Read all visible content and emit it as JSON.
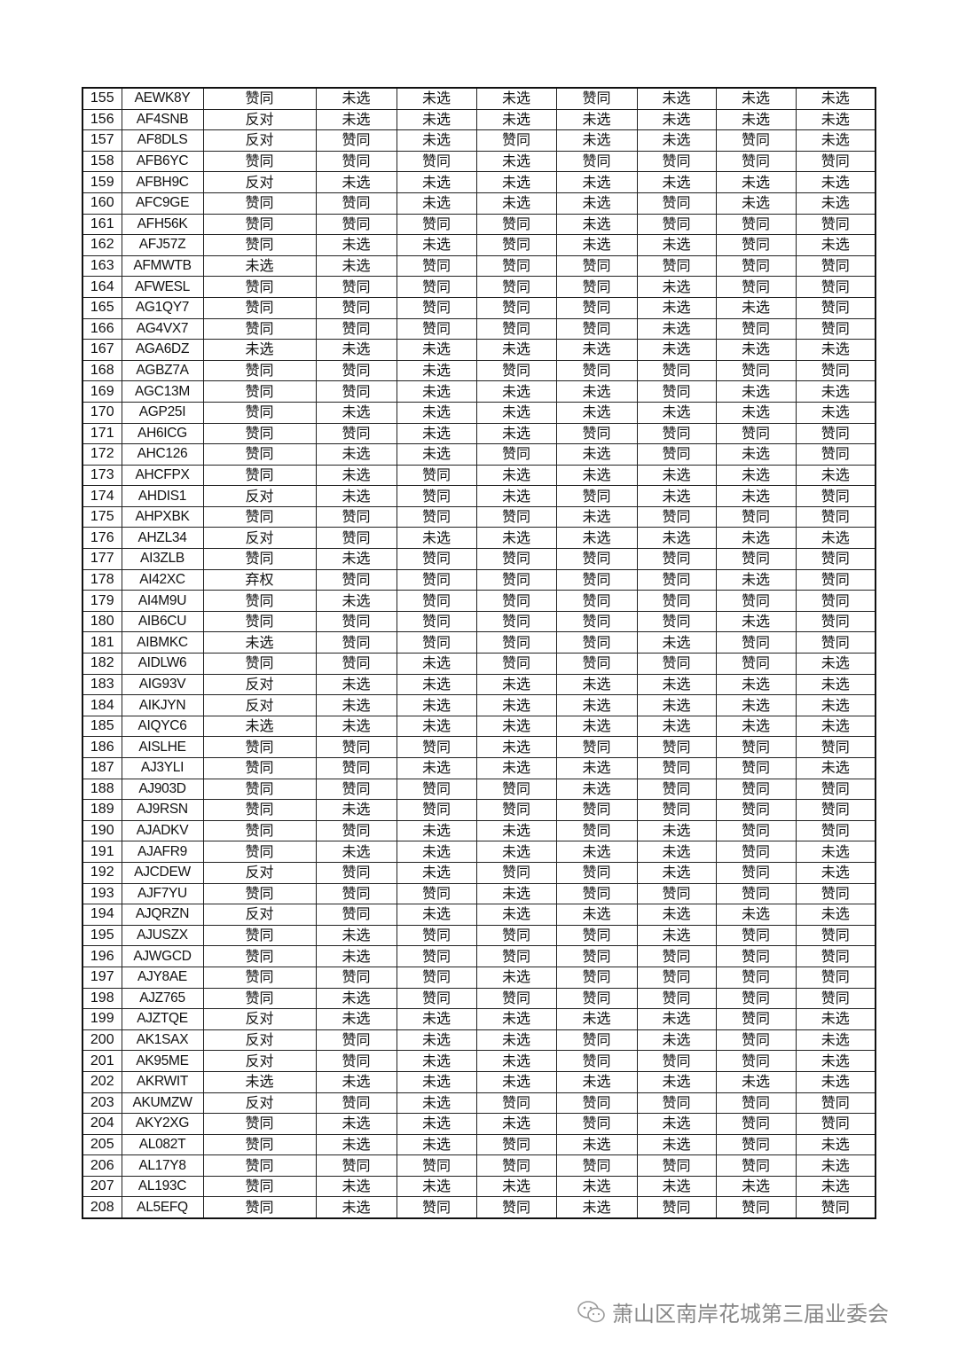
{
  "table": {
    "rows": [
      [
        "155",
        "AEWK8Y",
        "赞同",
        "未选",
        "未选",
        "未选",
        "赞同",
        "未选",
        "未选",
        "未选"
      ],
      [
        "156",
        "AF4SNB",
        "反对",
        "未选",
        "未选",
        "未选",
        "未选",
        "未选",
        "未选",
        "未选"
      ],
      [
        "157",
        "AF8DLS",
        "反对",
        "赞同",
        "未选",
        "赞同",
        "未选",
        "未选",
        "赞同",
        "未选"
      ],
      [
        "158",
        "AFB6YC",
        "赞同",
        "赞同",
        "赞同",
        "未选",
        "赞同",
        "赞同",
        "赞同",
        "赞同"
      ],
      [
        "159",
        "AFBH9C",
        "反对",
        "未选",
        "未选",
        "未选",
        "未选",
        "未选",
        "未选",
        "未选"
      ],
      [
        "160",
        "AFC9GE",
        "赞同",
        "赞同",
        "未选",
        "未选",
        "未选",
        "赞同",
        "未选",
        "未选"
      ],
      [
        "161",
        "AFH56K",
        "赞同",
        "赞同",
        "赞同",
        "赞同",
        "未选",
        "赞同",
        "赞同",
        "赞同"
      ],
      [
        "162",
        "AFJ57Z",
        "赞同",
        "未选",
        "未选",
        "赞同",
        "未选",
        "未选",
        "赞同",
        "未选"
      ],
      [
        "163",
        "AFMWTB",
        "未选",
        "未选",
        "赞同",
        "赞同",
        "赞同",
        "赞同",
        "赞同",
        "赞同"
      ],
      [
        "164",
        "AFWESL",
        "赞同",
        "赞同",
        "赞同",
        "赞同",
        "赞同",
        "未选",
        "赞同",
        "赞同"
      ],
      [
        "165",
        "AG1QY7",
        "赞同",
        "赞同",
        "赞同",
        "赞同",
        "赞同",
        "未选",
        "未选",
        "赞同"
      ],
      [
        "166",
        "AG4VX7",
        "赞同",
        "赞同",
        "赞同",
        "赞同",
        "赞同",
        "未选",
        "赞同",
        "赞同"
      ],
      [
        "167",
        "AGA6DZ",
        "未选",
        "未选",
        "未选",
        "未选",
        "未选",
        "未选",
        "未选",
        "未选"
      ],
      [
        "168",
        "AGBZ7A",
        "赞同",
        "赞同",
        "未选",
        "赞同",
        "赞同",
        "赞同",
        "赞同",
        "赞同"
      ],
      [
        "169",
        "AGC13M",
        "赞同",
        "赞同",
        "未选",
        "未选",
        "未选",
        "赞同",
        "未选",
        "未选"
      ],
      [
        "170",
        "AGP25I",
        "赞同",
        "未选",
        "未选",
        "未选",
        "未选",
        "未选",
        "未选",
        "未选"
      ],
      [
        "171",
        "AH6ICG",
        "赞同",
        "赞同",
        "未选",
        "未选",
        "赞同",
        "赞同",
        "赞同",
        "赞同"
      ],
      [
        "172",
        "AHC126",
        "赞同",
        "未选",
        "未选",
        "赞同",
        "未选",
        "赞同",
        "未选",
        "赞同"
      ],
      [
        "173",
        "AHCFPX",
        "赞同",
        "未选",
        "赞同",
        "未选",
        "未选",
        "未选",
        "未选",
        "未选"
      ],
      [
        "174",
        "AHDIS1",
        "反对",
        "未选",
        "赞同",
        "未选",
        "赞同",
        "未选",
        "未选",
        "赞同"
      ],
      [
        "175",
        "AHPXBK",
        "赞同",
        "赞同",
        "赞同",
        "赞同",
        "未选",
        "赞同",
        "赞同",
        "赞同"
      ],
      [
        "176",
        "AHZL34",
        "反对",
        "赞同",
        "未选",
        "未选",
        "未选",
        "未选",
        "未选",
        "未选"
      ],
      [
        "177",
        "AI3ZLB",
        "赞同",
        "未选",
        "赞同",
        "赞同",
        "赞同",
        "赞同",
        "赞同",
        "赞同"
      ],
      [
        "178",
        "AI42XC",
        "弃权",
        "赞同",
        "赞同",
        "赞同",
        "赞同",
        "赞同",
        "未选",
        "赞同"
      ],
      [
        "179",
        "AI4M9U",
        "赞同",
        "未选",
        "赞同",
        "赞同",
        "赞同",
        "赞同",
        "赞同",
        "赞同"
      ],
      [
        "180",
        "AIB6CU",
        "赞同",
        "赞同",
        "赞同",
        "赞同",
        "赞同",
        "赞同",
        "未选",
        "赞同"
      ],
      [
        "181",
        "AIBMKC",
        "未选",
        "赞同",
        "赞同",
        "赞同",
        "赞同",
        "未选",
        "赞同",
        "赞同"
      ],
      [
        "182",
        "AIDLW6",
        "赞同",
        "赞同",
        "未选",
        "赞同",
        "赞同",
        "赞同",
        "赞同",
        "未选"
      ],
      [
        "183",
        "AIG93V",
        "反对",
        "未选",
        "未选",
        "未选",
        "未选",
        "未选",
        "未选",
        "未选"
      ],
      [
        "184",
        "AIKJYN",
        "反对",
        "未选",
        "未选",
        "未选",
        "未选",
        "未选",
        "未选",
        "未选"
      ],
      [
        "185",
        "AIQYC6",
        "未选",
        "未选",
        "未选",
        "未选",
        "未选",
        "未选",
        "未选",
        "未选"
      ],
      [
        "186",
        "AISLHE",
        "赞同",
        "赞同",
        "赞同",
        "未选",
        "赞同",
        "赞同",
        "赞同",
        "赞同"
      ],
      [
        "187",
        "AJ3YLI",
        "赞同",
        "赞同",
        "未选",
        "未选",
        "未选",
        "赞同",
        "赞同",
        "未选"
      ],
      [
        "188",
        "AJ903D",
        "赞同",
        "赞同",
        "赞同",
        "赞同",
        "未选",
        "赞同",
        "赞同",
        "赞同"
      ],
      [
        "189",
        "AJ9RSN",
        "赞同",
        "未选",
        "赞同",
        "赞同",
        "赞同",
        "赞同",
        "赞同",
        "赞同"
      ],
      [
        "190",
        "AJADKV",
        "赞同",
        "赞同",
        "未选",
        "未选",
        "赞同",
        "未选",
        "赞同",
        "赞同"
      ],
      [
        "191",
        "AJAFR9",
        "赞同",
        "未选",
        "未选",
        "未选",
        "未选",
        "未选",
        "赞同",
        "未选"
      ],
      [
        "192",
        "AJCDEW",
        "反对",
        "赞同",
        "未选",
        "赞同",
        "赞同",
        "未选",
        "赞同",
        "未选"
      ],
      [
        "193",
        "AJF7YU",
        "赞同",
        "赞同",
        "赞同",
        "未选",
        "赞同",
        "赞同",
        "赞同",
        "赞同"
      ],
      [
        "194",
        "AJQRZN",
        "反对",
        "赞同",
        "未选",
        "未选",
        "未选",
        "未选",
        "未选",
        "未选"
      ],
      [
        "195",
        "AJUSZX",
        "赞同",
        "未选",
        "赞同",
        "赞同",
        "赞同",
        "未选",
        "赞同",
        "赞同"
      ],
      [
        "196",
        "AJWGCD",
        "赞同",
        "未选",
        "赞同",
        "赞同",
        "赞同",
        "赞同",
        "赞同",
        "赞同"
      ],
      [
        "197",
        "AJY8AE",
        "赞同",
        "赞同",
        "赞同",
        "未选",
        "赞同",
        "赞同",
        "赞同",
        "赞同"
      ],
      [
        "198",
        "AJZ765",
        "赞同",
        "未选",
        "赞同",
        "赞同",
        "赞同",
        "赞同",
        "赞同",
        "赞同"
      ],
      [
        "199",
        "AJZTQE",
        "反对",
        "未选",
        "未选",
        "未选",
        "未选",
        "未选",
        "赞同",
        "未选"
      ],
      [
        "200",
        "AK1SAX",
        "反对",
        "赞同",
        "未选",
        "未选",
        "赞同",
        "未选",
        "赞同",
        "未选"
      ],
      [
        "201",
        "AK95ME",
        "反对",
        "赞同",
        "未选",
        "未选",
        "赞同",
        "赞同",
        "赞同",
        "未选"
      ],
      [
        "202",
        "AKRWIT",
        "未选",
        "未选",
        "未选",
        "未选",
        "未选",
        "未选",
        "未选",
        "未选"
      ],
      [
        "203",
        "AKUMZW",
        "反对",
        "赞同",
        "未选",
        "赞同",
        "赞同",
        "赞同",
        "赞同",
        "赞同"
      ],
      [
        "204",
        "AKY2XG",
        "赞同",
        "未选",
        "未选",
        "未选",
        "赞同",
        "未选",
        "赞同",
        "赞同"
      ],
      [
        "205",
        "AL082T",
        "赞同",
        "未选",
        "未选",
        "赞同",
        "未选",
        "未选",
        "赞同",
        "未选"
      ],
      [
        "206",
        "AL17Y8",
        "赞同",
        "赞同",
        "赞同",
        "赞同",
        "赞同",
        "赞同",
        "赞同",
        "未选"
      ],
      [
        "207",
        "AL193C",
        "赞同",
        "未选",
        "未选",
        "未选",
        "未选",
        "未选",
        "未选",
        "未选"
      ],
      [
        "208",
        "AL5EFQ",
        "赞同",
        "未选",
        "赞同",
        "赞同",
        "未选",
        "赞同",
        "赞同",
        "赞同"
      ]
    ]
  },
  "footer": {
    "icon": "wechat-icon",
    "text": "萧山区南岸花城第三届业委会"
  }
}
